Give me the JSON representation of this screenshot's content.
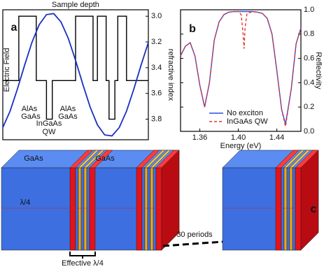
{
  "chart_data": [
    {
      "type": "line",
      "label": "a",
      "title": "Sample depth",
      "ylabel": "refractive index",
      "y2label": "Electric Field",
      "annotations": [
        "AlAs",
        "GaAs",
        "InGaAs",
        "QW",
        "AlAs",
        "GaAs"
      ],
      "xlim": [
        0,
        100
      ],
      "ylim": [
        3.96,
        2.95
      ],
      "yticks": [
        {
          "value": 3,
          "label": "3.0"
        },
        3.2,
        3.4,
        3.6,
        3.8
      ],
      "y2lim": [
        -1.05,
        1.05
      ],
      "series": [
        {
          "color": "#000000",
          "x": [
            0,
            11,
            11,
            23,
            23,
            30,
            30,
            34,
            34,
            50,
            50,
            62,
            62,
            65,
            65,
            71,
            71,
            73,
            73,
            77,
            77,
            79,
            79,
            85,
            85,
            100
          ],
          "values": [
            3.5,
            3.5,
            3.0,
            3.0,
            3.5,
            3.5,
            3.8,
            3.8,
            3.5,
            3.5,
            3.0,
            3.0,
            3.5,
            3.5,
            3.0,
            3.0,
            3.5,
            3.5,
            3.8,
            3.8,
            3.5,
            3.5,
            3.0,
            3.0,
            3.5,
            3.5
          ]
        },
        {
          "color": "#1a2fc0",
          "axis": "y2",
          "x": [
            0,
            5,
            10,
            15,
            20,
            25,
            30,
            35,
            40,
            45,
            50,
            55,
            60,
            65,
            70,
            75,
            80,
            85,
            90,
            95,
            100
          ],
          "values": [
            -0.853,
            -0.588,
            -0.233,
            0.156,
            0.522,
            0.809,
            0.972,
            0.988,
            0.853,
            0.588,
            0.233,
            -0.156,
            -0.522,
            -0.809,
            -0.972,
            -0.988,
            -0.853,
            -0.588,
            -0.233,
            0.156,
            0.522
          ]
        }
      ]
    },
    {
      "type": "line",
      "label": "b",
      "xlabel": "Energy (eV)",
      "ylabel": "Reflectivity",
      "legend": "lower center",
      "xlim": [
        1.34,
        1.465
      ],
      "xticks": [
        1.36,
        {
          "value": 1.4,
          "label": "1.40"
        },
        1.44
      ],
      "ylim": [
        0,
        1
      ],
      "yticks": [
        {
          "value": 0,
          "label": "0.0"
        },
        0.2,
        0.4,
        0.6,
        0.8,
        {
          "value": 1,
          "label": "1.0"
        }
      ],
      "x": [
        1.34,
        1.345,
        1.35,
        1.355,
        1.36,
        1.365,
        1.37,
        1.375,
        1.38,
        1.385,
        1.39,
        1.395,
        1.4,
        1.403,
        1.405,
        1.406,
        1.407,
        1.409,
        1.415,
        1.42,
        1.425,
        1.43,
        1.435,
        1.44,
        1.445,
        1.449,
        1.455,
        1.46,
        1.465
      ],
      "series": [
        {
          "name": "No exciton",
          "color": "#2b4ee0",
          "dashed": false,
          "values": [
            0.62,
            0.7,
            0.73,
            0.62,
            0.38,
            0.2,
            0.4,
            0.75,
            0.9,
            0.96,
            0.98,
            0.985,
            0.985,
            0.985,
            0.985,
            0.985,
            0.985,
            0.985,
            0.985,
            0.98,
            0.97,
            0.93,
            0.8,
            0.5,
            0.18,
            0.06,
            0.35,
            0.72,
            0.85
          ]
        },
        {
          "name": "InGaAs QW",
          "color": "#e8332a",
          "dashed": true,
          "values": [
            0.62,
            0.7,
            0.73,
            0.62,
            0.38,
            0.2,
            0.4,
            0.75,
            0.9,
            0.96,
            0.98,
            0.985,
            0.985,
            0.96,
            0.8,
            0.68,
            0.85,
            0.97,
            0.985,
            0.98,
            0.97,
            0.93,
            0.8,
            0.5,
            0.18,
            0.04,
            0.35,
            0.72,
            0.85
          ]
        }
      ]
    }
  ],
  "diagram": {
    "label": "c",
    "layers": [
      "GaAs",
      "GaAs"
    ],
    "lambda": "λ/4",
    "effective": "Effective λ/4",
    "periods": "30 periods"
  }
}
